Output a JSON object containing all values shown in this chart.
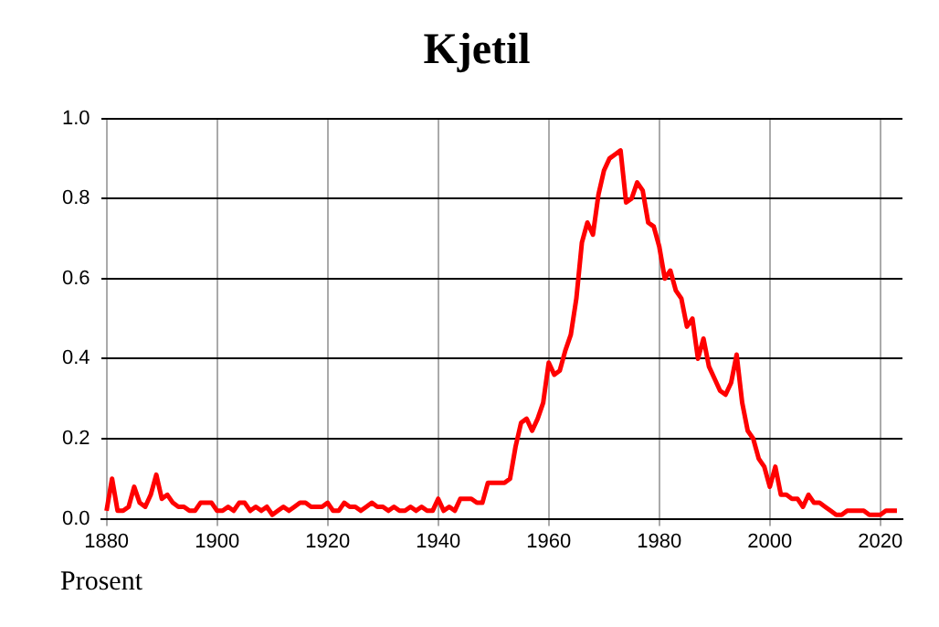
{
  "chart_data": {
    "type": "line",
    "title": "Kjetil",
    "ylabel": "Prosent",
    "x": [
      1880,
      1881,
      1882,
      1883,
      1884,
      1885,
      1886,
      1887,
      1888,
      1889,
      1890,
      1891,
      1892,
      1893,
      1894,
      1895,
      1896,
      1897,
      1898,
      1899,
      1900,
      1901,
      1902,
      1903,
      1904,
      1905,
      1906,
      1907,
      1908,
      1909,
      1910,
      1911,
      1912,
      1913,
      1914,
      1915,
      1916,
      1917,
      1918,
      1919,
      1920,
      1921,
      1922,
      1923,
      1924,
      1925,
      1926,
      1927,
      1928,
      1929,
      1930,
      1931,
      1932,
      1933,
      1934,
      1935,
      1936,
      1937,
      1938,
      1939,
      1940,
      1941,
      1942,
      1943,
      1944,
      1945,
      1946,
      1947,
      1948,
      1949,
      1950,
      1951,
      1952,
      1953,
      1954,
      1955,
      1956,
      1957,
      1958,
      1959,
      1960,
      1961,
      1962,
      1963,
      1964,
      1965,
      1966,
      1967,
      1968,
      1969,
      1970,
      1971,
      1972,
      1973,
      1974,
      1975,
      1976,
      1977,
      1978,
      1979,
      1980,
      1981,
      1982,
      1983,
      1984,
      1985,
      1986,
      1987,
      1988,
      1989,
      1990,
      1991,
      1992,
      1993,
      1994,
      1995,
      1996,
      1997,
      1998,
      1999,
      2000,
      2001,
      2002,
      2003,
      2004,
      2005,
      2006,
      2007,
      2008,
      2009,
      2010,
      2011,
      2012,
      2013,
      2014,
      2015,
      2016,
      2017,
      2018,
      2019,
      2020,
      2021,
      2022,
      2023
    ],
    "series": [
      {
        "color": "#ff0000",
        "values": [
          0.02,
          0.1,
          0.02,
          0.02,
          0.03,
          0.08,
          0.04,
          0.03,
          0.06,
          0.11,
          0.05,
          0.06,
          0.04,
          0.03,
          0.03,
          0.02,
          0.02,
          0.04,
          0.04,
          0.04,
          0.02,
          0.02,
          0.03,
          0.02,
          0.04,
          0.04,
          0.02,
          0.03,
          0.02,
          0.03,
          0.01,
          0.02,
          0.03,
          0.02,
          0.03,
          0.04,
          0.04,
          0.03,
          0.03,
          0.03,
          0.04,
          0.02,
          0.02,
          0.04,
          0.03,
          0.03,
          0.02,
          0.03,
          0.04,
          0.03,
          0.03,
          0.02,
          0.03,
          0.02,
          0.02,
          0.03,
          0.02,
          0.03,
          0.02,
          0.02,
          0.05,
          0.02,
          0.03,
          0.02,
          0.05,
          0.05,
          0.05,
          0.04,
          0.04,
          0.09,
          0.09,
          0.09,
          0.09,
          0.1,
          0.18,
          0.24,
          0.25,
          0.22,
          0.25,
          0.29,
          0.39,
          0.36,
          0.37,
          0.42,
          0.46,
          0.55,
          0.69,
          0.74,
          0.71,
          0.81,
          0.87,
          0.9,
          0.91,
          0.92,
          0.79,
          0.8,
          0.84,
          0.82,
          0.74,
          0.73,
          0.68,
          0.6,
          0.62,
          0.57,
          0.55,
          0.48,
          0.5,
          0.4,
          0.45,
          0.38,
          0.35,
          0.32,
          0.31,
          0.34,
          0.41,
          0.29,
          0.22,
          0.2,
          0.15,
          0.13,
          0.08,
          0.13,
          0.06,
          0.06,
          0.05,
          0.05,
          0.03,
          0.06,
          0.04,
          0.04,
          0.03,
          0.02,
          0.01,
          0.01,
          0.02,
          0.02,
          0.02,
          0.02,
          0.01,
          0.01,
          0.01,
          0.02,
          0.02,
          0.02
        ]
      }
    ],
    "xlim": [
      1879,
      2024
    ],
    "xticks": [
      1880,
      1900,
      1920,
      1940,
      1960,
      1980,
      2000,
      2020
    ],
    "ylim": [
      0,
      1
    ],
    "yticks": [
      {
        "value": 0,
        "label": "0.0"
      },
      {
        "value": 0.2,
        "label": "0.2"
      },
      {
        "value": 0.4,
        "label": "0.4"
      },
      {
        "value": 0.6,
        "label": "0.6"
      },
      {
        "value": 0.8,
        "label": "0.8"
      },
      {
        "value": 1,
        "label": "1.0"
      }
    ],
    "grid": true,
    "legend": false
  }
}
